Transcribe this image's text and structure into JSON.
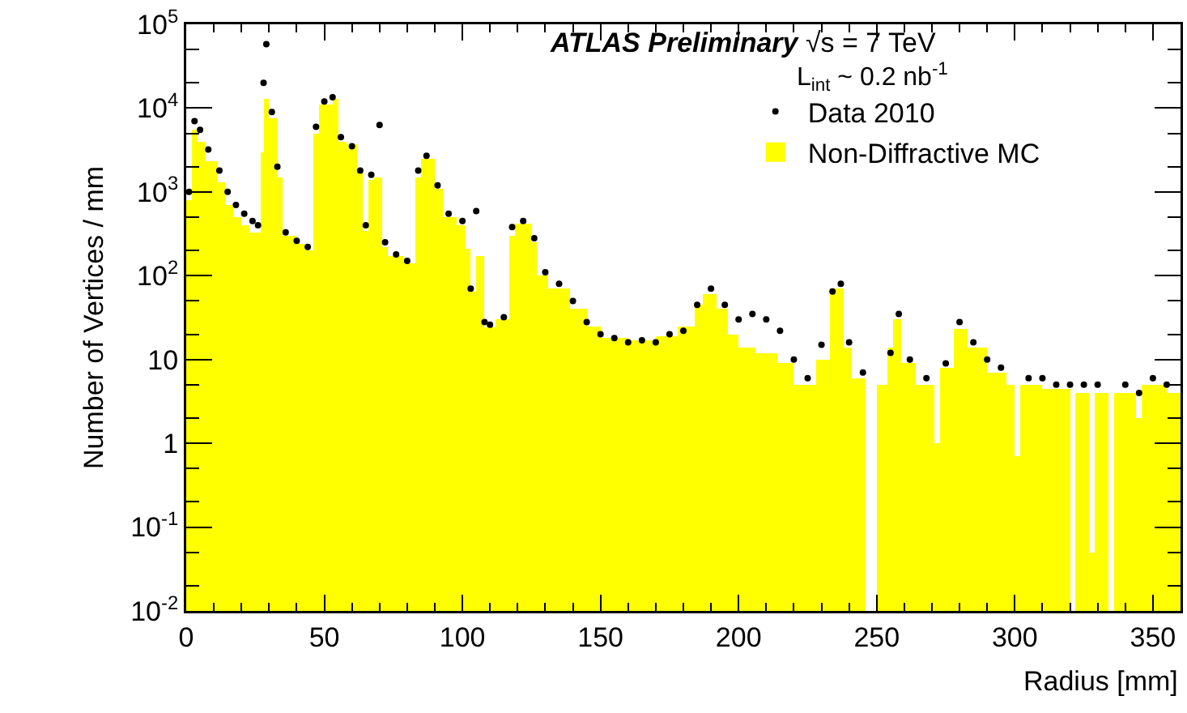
{
  "chart_data": {
    "type": "histogram",
    "xlabel": "Radius [mm]",
    "ylabel": "Number of Vertices / mm",
    "annotations": [
      "ATLAS Preliminary √s = 7 TeV",
      "L$_{int}$ ~ 0.2 nb$^{-1}$"
    ],
    "xlim": [
      0,
      360
    ],
    "xticks": [
      0,
      50,
      100,
      150,
      200,
      250,
      300,
      350
    ],
    "ylim": [
      0.01,
      100000
    ],
    "yticks": [
      {
        "value": 0.01,
        "label": "10$^{-2}$"
      },
      {
        "value": 0.1,
        "label": "10$^{-1}$"
      },
      1,
      10,
      {
        "value": 100,
        "label": "10$^{2}$"
      },
      {
        "value": 1000,
        "label": "10$^{3}$"
      },
      {
        "value": 10000,
        "label": "10$^{4}$"
      },
      {
        "value": 100000,
        "label": "10$^{5}$"
      }
    ],
    "log": "y",
    "grid": false,
    "legend": "top right",
    "marker": "circle",
    "series": [
      {
        "name": "Non-Diffractive MC",
        "type": "histogram",
        "color": "#ffff00",
        "bins": [
          0,
          2,
          4,
          7,
          11,
          14,
          17,
          20,
          23,
          27,
          28,
          30,
          33,
          35,
          40,
          43,
          46,
          48,
          53,
          55,
          58,
          62,
          64,
          66,
          68,
          71,
          73,
          79,
          83,
          85,
          90,
          93,
          98,
          101,
          103,
          105,
          108,
          112,
          117,
          119,
          125,
          127,
          131,
          139,
          145,
          150,
          160,
          170,
          178,
          184,
          187,
          192,
          196,
          200,
          206,
          214,
          220,
          228,
          233,
          238,
          241,
          246,
          250,
          254,
          256,
          259,
          264,
          271,
          273,
          278,
          283,
          290,
          297,
          300,
          302,
          310,
          320,
          322,
          327,
          329,
          334,
          336,
          344,
          346,
          355,
          360
        ],
        "values": [
          800,
          5500,
          4000,
          2300,
          1300,
          700,
          500,
          400,
          330,
          3000,
          13000,
          7600,
          1500,
          300,
          240,
          200,
          5000,
          11000,
          13000,
          4000,
          3700,
          1700,
          340,
          1400,
          1500,
          220,
          170,
          140,
          1500,
          2500,
          1100,
          500,
          400,
          210,
          65,
          170,
          24,
          30,
          300,
          420,
          250,
          100,
          70,
          40,
          25,
          18,
          17,
          19,
          25,
          45,
          60,
          40,
          20,
          14,
          12,
          9,
          5,
          10,
          70,
          14,
          6,
          null,
          5,
          14,
          30,
          9,
          5,
          1,
          8,
          23,
          14,
          7,
          5,
          0.7,
          5,
          4.5,
          null,
          4,
          0.05,
          4,
          null,
          4,
          2,
          5,
          4
        ]
      },
      {
        "name": "Data 2010",
        "type": "scatter",
        "color": "#000000",
        "x": [
          1,
          3,
          5,
          8,
          12,
          15,
          18,
          21,
          24,
          26,
          28,
          29,
          31,
          33,
          36,
          40,
          44,
          47,
          50,
          53,
          56,
          60,
          63,
          65,
          67,
          70,
          72,
          76,
          80,
          84,
          87,
          91,
          95,
          100,
          103,
          105,
          108,
          110,
          115,
          118,
          122,
          126,
          130,
          135,
          140,
          145,
          150,
          155,
          160,
          165,
          170,
          175,
          180,
          185,
          190,
          195,
          200,
          205,
          210,
          215,
          220,
          225,
          230,
          234,
          237,
          240,
          245,
          255,
          258,
          262,
          268,
          275,
          280,
          285,
          290,
          295,
          305,
          310,
          315,
          320,
          325,
          330,
          340,
          345,
          350,
          355
        ],
        "values": [
          1000,
          7000,
          5500,
          3200,
          1800,
          1000,
          700,
          550,
          450,
          400,
          20000,
          58000,
          9000,
          2000,
          330,
          260,
          220,
          6000,
          12000,
          13500,
          4500,
          3500,
          1800,
          400,
          1600,
          6300,
          250,
          180,
          150,
          1800,
          2700,
          1200,
          550,
          450,
          70,
          590,
          28,
          26,
          32,
          380,
          450,
          280,
          110,
          80,
          50,
          28,
          20,
          18,
          16,
          17,
          16,
          20,
          22,
          45,
          70,
          45,
          30,
          35,
          30,
          22,
          10,
          6,
          15,
          65,
          80,
          16,
          7,
          12,
          35,
          10,
          6,
          9,
          28,
          16,
          10,
          8,
          6,
          6,
          5,
          5,
          5,
          5,
          5,
          4,
          6,
          5
        ]
      }
    ]
  }
}
